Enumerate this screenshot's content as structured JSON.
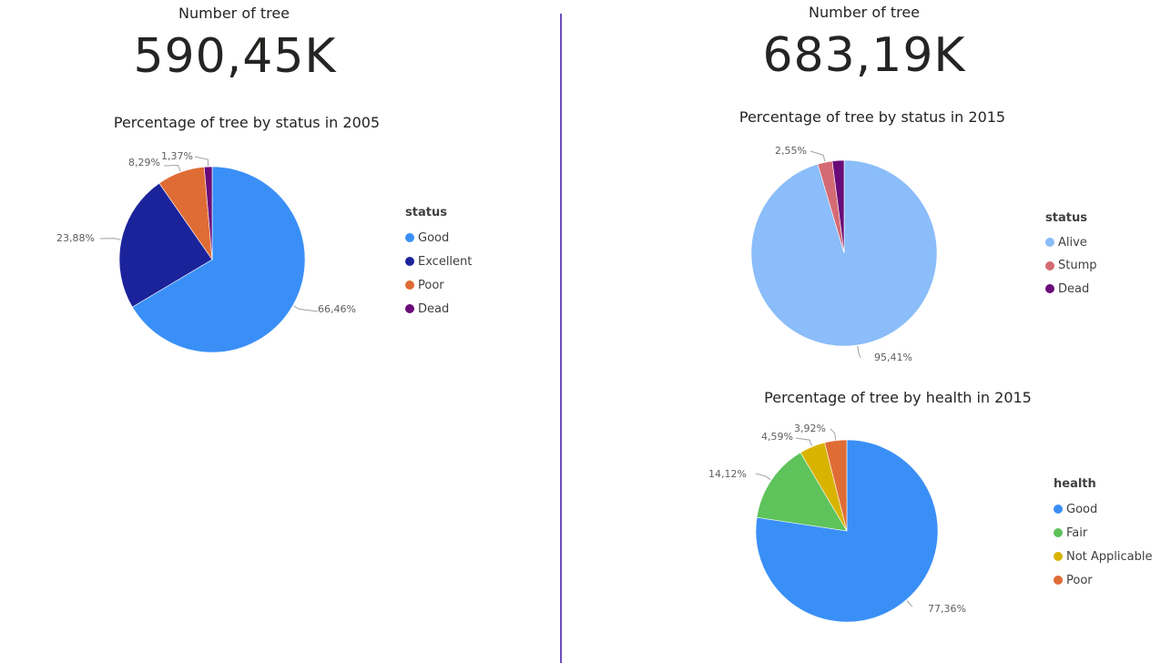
{
  "left": {
    "card": {
      "label": "Number of tree",
      "value": "590,45K"
    },
    "chart": {
      "title": "Percentage of tree by status in 2005"
    }
  },
  "right": {
    "card": {
      "label": "Number of tree",
      "value": "683,19K"
    },
    "chart1": {
      "title": "Percentage of tree by status in 2015"
    },
    "chart2": {
      "title": "Percentage of tree by health in 2015"
    }
  },
  "chart_data": [
    {
      "type": "pie",
      "title": "Percentage of tree by status in 2005",
      "legend_title": "status",
      "legend_position": "right",
      "categories": [
        "Good",
        "Excellent",
        "Poor",
        "Dead"
      ],
      "values": [
        66.46,
        23.88,
        8.29,
        1.37
      ],
      "labels": [
        "66,46%",
        "23,88%",
        "8,29%",
        "1,37%"
      ],
      "colors": [
        "#3a8ff7",
        "#1b239b",
        "#e06c35",
        "#6b0b7a"
      ]
    },
    {
      "type": "pie",
      "title": "Percentage of tree by status in 2015",
      "legend_title": "status",
      "legend_position": "right",
      "categories": [
        "Alive",
        "Stump",
        "Dead"
      ],
      "values": [
        95.41,
        2.55,
        2.04
      ],
      "labels": [
        "95,41%",
        "2,55%",
        ""
      ],
      "colors": [
        "#8abdf9",
        "#d46b74",
        "#6b0b7a"
      ]
    },
    {
      "type": "pie",
      "title": "Percentage of tree by health in 2015",
      "legend_title": "health",
      "legend_position": "right",
      "categories": [
        "Good",
        "Fair",
        "Not Applicable",
        "Poor"
      ],
      "values": [
        77.36,
        14.12,
        4.59,
        3.92
      ],
      "labels": [
        "77,36%",
        "14,12%",
        "4,59%",
        "3,92%"
      ],
      "colors": [
        "#3a8ff7",
        "#5ec35b",
        "#d8b400",
        "#e06c35"
      ]
    }
  ]
}
